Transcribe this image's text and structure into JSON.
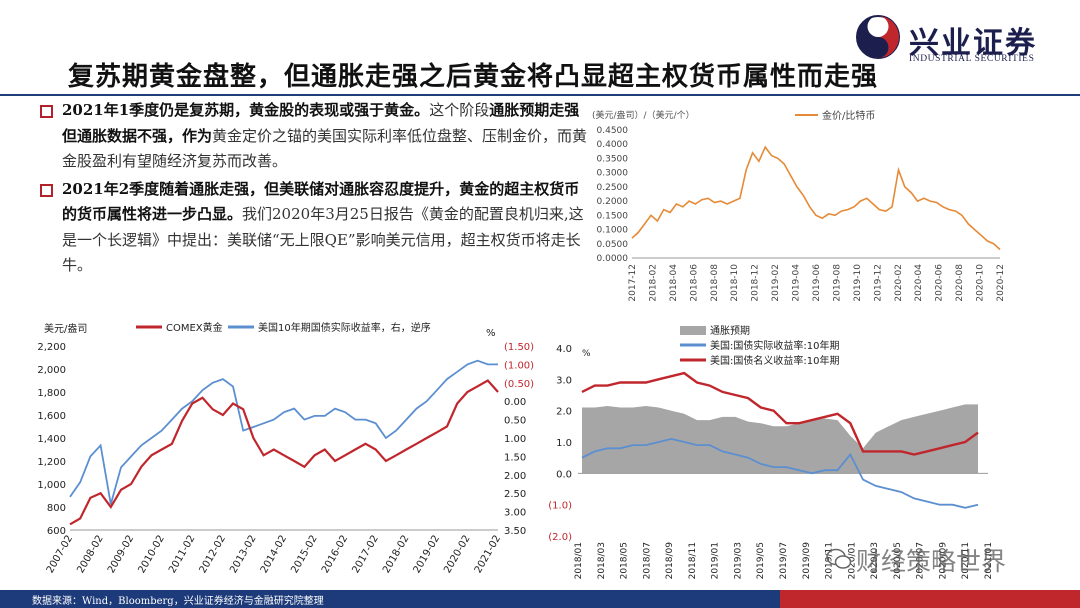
{
  "header": {
    "title": "复苏期黄金盘整，但通胀走强之后黄金将凸显超主权货币属性而走强",
    "logo_cn": "兴业证券",
    "logo_en": "INDUSTRIAL SECURITIES"
  },
  "bullets": [
    {
      "bold": "2021年1季度仍是复苏期，黄金股的表现或强于黄金。",
      "text": "这个阶段",
      "bold2": "通胀预期走强但通胀数据不强，作为",
      "text2": "黄金定价之锚的美国实际利率低位盘整、压制金价，而黄金股盈利有望随经济复苏而改善。"
    },
    {
      "bold": "2021年2季度随着通胀走强，但美联储对通胀容忍度提升，黄金的超主权货币的货币属性将进一步凸显。",
      "text": "我们2020年3月25日报告《黄金的配置良机归来,这是一个长逻辑》中提出：美联储“无上限QE”影响美元信用，超主权货币将走长牛。"
    }
  ],
  "footer": {
    "source": "数据来源：Wind，Bloomberg，兴业证券经济与金融研究院整理",
    "watermark": "财经策略世界"
  },
  "colors": {
    "accent_red": "#c0272d",
    "navy": "#1d3b7a",
    "orange": "#e58a37",
    "blue": "#5b8fd0",
    "gray": "#a6a6a6"
  },
  "chart_data": [
    {
      "type": "line",
      "unit_left": "(美元/盎司）/（美元/个）",
      "series": [
        {
          "name": "金价/比特币",
          "values": [
            0.07,
            0.09,
            0.12,
            0.15,
            0.13,
            0.17,
            0.16,
            0.19,
            0.18,
            0.2,
            0.19,
            0.205,
            0.21,
            0.195,
            0.2,
            0.19,
            0.2,
            0.21,
            0.31,
            0.37,
            0.34,
            0.39,
            0.36,
            0.35,
            0.33,
            0.29,
            0.25,
            0.22,
            0.18,
            0.15,
            0.14,
            0.155,
            0.15,
            0.165,
            0.17,
            0.18,
            0.2,
            0.21,
            0.19,
            0.17,
            0.165,
            0.18,
            0.31,
            0.25,
            0.23,
            0.2,
            0.21,
            0.2,
            0.195,
            0.18,
            0.17,
            0.165,
            0.15,
            0.12,
            0.1,
            0.08,
            0.06,
            0.05,
            0.03
          ]
        }
      ],
      "x_ticks": [
        "2017-12",
        "2018-02",
        "2018-04",
        "2018-06",
        "2018-08",
        "2018-10",
        "2018-12",
        "2019-02",
        "2019-04",
        "2019-06",
        "2019-08",
        "2019-10",
        "2019-12",
        "2020-02",
        "2020-04",
        "2020-06",
        "2020-08",
        "2020-10",
        "2020-12"
      ],
      "y_ticks": [
        "0.4500",
        "0.4000",
        "0.3500",
        "0.3000",
        "0.2500",
        "0.2000",
        "0.1500",
        "0.1000",
        "0.0500",
        "0.0000"
      ],
      "ylim": [
        0,
        0.45
      ]
    },
    {
      "type": "line",
      "ylabel_left": "美元/盎司",
      "ylabel_right": "%",
      "series": [
        {
          "name": "COMEX黄金",
          "values": [
            650,
            700,
            880,
            920,
            800,
            950,
            1000,
            1150,
            1250,
            1300,
            1350,
            1550,
            1700,
            1750,
            1650,
            1600,
            1700,
            1650,
            1400,
            1250,
            1300,
            1250,
            1200,
            1150,
            1250,
            1300,
            1200,
            1250,
            1300,
            1350,
            1300,
            1200,
            1250,
            1300,
            1350,
            1400,
            1450,
            1500,
            1700,
            1800,
            1850,
            1900,
            1800
          ]
        },
        {
          "name": "美国10年期国债实际收益率，右，逆序",
          "values": [
            2.6,
            2.2,
            1.5,
            1.2,
            2.8,
            1.8,
            1.5,
            1.2,
            1.0,
            0.8,
            0.5,
            0.2,
            0.0,
            -0.3,
            -0.5,
            -0.6,
            -0.4,
            0.8,
            0.7,
            0.6,
            0.5,
            0.3,
            0.2,
            0.5,
            0.4,
            0.4,
            0.2,
            0.3,
            0.5,
            0.5,
            0.6,
            1.0,
            0.8,
            0.5,
            0.2,
            0.0,
            -0.3,
            -0.6,
            -0.8,
            -1.0,
            -1.1,
            -1.0,
            -1.0
          ]
        }
      ],
      "x_ticks": [
        "2007-02",
        "2008-02",
        "2009-02",
        "2010-02",
        "2011-02",
        "2012-02",
        "2013-02",
        "2014-02",
        "2015-02",
        "2016-02",
        "2017-02",
        "2018-02",
        "2019-02",
        "2020-02",
        "2021-02"
      ],
      "y_ticks": [
        "2,200",
        "2,000",
        "1,800",
        "1,600",
        "1,400",
        "1,200",
        "1,000",
        "800",
        "600"
      ],
      "y2_ticks": [
        "(1.50)",
        "(1.00)",
        "(0.50)",
        "0.00",
        "0.50",
        "1.00",
        "1.50",
        "2.00",
        "2.50",
        "3.00",
        "3.50"
      ],
      "ylim": [
        600,
        2200
      ],
      "y2lim": [
        -1.5,
        3.5
      ]
    },
    {
      "type": "area",
      "ylabel_left": "%",
      "series": [
        {
          "name": "通胀预期",
          "values": [
            2.1,
            2.1,
            2.15,
            2.1,
            2.1,
            2.15,
            2.1,
            2.0,
            1.9,
            1.7,
            1.7,
            1.8,
            1.8,
            1.65,
            1.6,
            1.5,
            1.5,
            1.6,
            1.7,
            1.75,
            1.7,
            1.2,
            0.8,
            1.3,
            1.5,
            1.7,
            1.8,
            1.9,
            2.0,
            2.1,
            2.2,
            2.2
          ]
        },
        {
          "name": "美国:国债实际收益率:10年期",
          "values": [
            0.5,
            0.7,
            0.8,
            0.8,
            0.9,
            0.9,
            1.0,
            1.1,
            1.0,
            0.9,
            0.9,
            0.7,
            0.6,
            0.5,
            0.3,
            0.2,
            0.2,
            0.1,
            0.0,
            0.1,
            0.1,
            0.6,
            -0.2,
            -0.4,
            -0.5,
            -0.6,
            -0.8,
            -0.9,
            -1.0,
            -1.0,
            -1.1,
            -1.0
          ]
        },
        {
          "name": "美国:国债名义收益率:10年期",
          "values": [
            2.6,
            2.8,
            2.8,
            2.9,
            2.9,
            2.9,
            3.0,
            3.1,
            3.2,
            2.9,
            2.8,
            2.6,
            2.5,
            2.4,
            2.1,
            2.0,
            1.6,
            1.6,
            1.7,
            1.8,
            1.9,
            1.6,
            0.7,
            0.7,
            0.7,
            0.7,
            0.6,
            0.7,
            0.8,
            0.9,
            1.0,
            1.3
          ]
        }
      ],
      "x_ticks": [
        "2018/01",
        "2018/03",
        "2018/05",
        "2018/07",
        "2018/09",
        "2018/11",
        "2019/01",
        "2019/03",
        "2019/05",
        "2019/07",
        "2019/09",
        "2019/11",
        "2020/01",
        "2020/03",
        "2020/05",
        "2020/07",
        "2020/09",
        "2020/11",
        "2021/01"
      ],
      "y_ticks": [
        "4.0",
        "3.0",
        "2.0",
        "1.0",
        "0.0",
        "(1.0)",
        "(2.0)"
      ],
      "ylim": [
        -2,
        4
      ]
    }
  ]
}
